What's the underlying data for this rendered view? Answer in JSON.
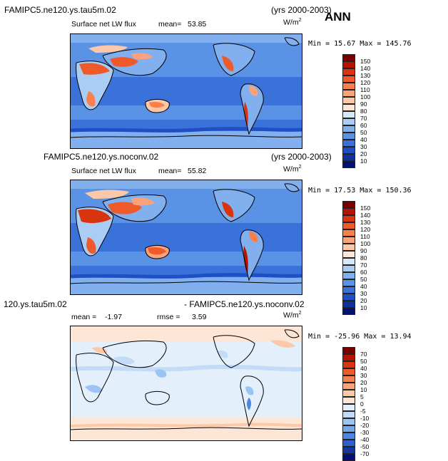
{
  "season": "ANN",
  "panels": [
    {
      "case": "FAMIPC5.ne120.ys.tau5m.02",
      "years": "(yrs 2000-2003)",
      "variable": "Surface net LW flux",
      "mean_label": "mean=",
      "mean": "53.85",
      "units": "W/m",
      "units_exp": "2",
      "min_label": "Min =",
      "min": "15.67",
      "max_label": "Max =",
      "max": "145.76",
      "colorbar": [
        "150",
        "140",
        "130",
        "120",
        "110",
        "100",
        "90",
        "80",
        "70",
        "60",
        "50",
        "40",
        "30",
        "20",
        "10"
      ],
      "colors": [
        "#7a0000",
        "#b51400",
        "#d93410",
        "#ee5a2a",
        "#f7804c",
        "#fca27a",
        "#fdc8a8",
        "#fde6d6",
        "#d6e9fb",
        "#aacdf5",
        "#82b0ef",
        "#5a92e6",
        "#3a72d9",
        "#1f4fc4",
        "#10309a",
        "#041170"
      ]
    },
    {
      "case": "FAMIPC5.ne120.ys.noconv.02",
      "years": "(yrs 2000-2003)",
      "variable": "Surface net LW flux",
      "mean_label": "mean=",
      "mean": "55.82",
      "units": "W/m",
      "units_exp": "2",
      "min_label": "Min =",
      "min": "17.53",
      "max_label": "Max =",
      "max": "150.36",
      "colorbar": [
        "150",
        "140",
        "130",
        "120",
        "110",
        "100",
        "90",
        "80",
        "70",
        "60",
        "50",
        "40",
        "30",
        "20",
        "10"
      ],
      "colors": [
        "#7a0000",
        "#b51400",
        "#d93410",
        "#ee5a2a",
        "#f7804c",
        "#fca27a",
        "#fdc8a8",
        "#fde6d6",
        "#d6e9fb",
        "#aacdf5",
        "#82b0ef",
        "#5a92e6",
        "#3a72d9",
        "#1f4fc4",
        "#10309a",
        "#041170"
      ]
    },
    {
      "case_left": "120.ys.tau5m.02",
      "case_right": "- FAMIPC5.ne120.ys.noconv.02",
      "mean_label": "mean =",
      "mean": "-1.97",
      "rmse_label": "rmse =",
      "rmse": "3.59",
      "units": "W/m",
      "units_exp": "2",
      "min_label": "Min =",
      "min": "-25.96",
      "max_label": "Max =",
      "max": "13.94",
      "colorbar": [
        "70",
        "50",
        "40",
        "30",
        "20",
        "10",
        "5",
        "0",
        "-5",
        "-10",
        "-20",
        "-30",
        "-40",
        "-50",
        "-70"
      ],
      "colors": [
        "#7a0000",
        "#b51400",
        "#d93410",
        "#ee5a2a",
        "#f7804c",
        "#fca27a",
        "#fdc8a8",
        "#fde6d6",
        "#e3f0fc",
        "#c2dcf8",
        "#9cc3f2",
        "#76a7ea",
        "#4f86df",
        "#2e5fcd",
        "#14389f",
        "#041170"
      ]
    }
  ]
}
